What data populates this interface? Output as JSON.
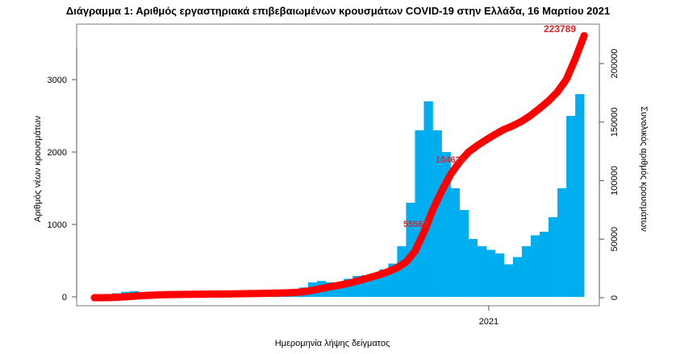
{
  "chart_data": {
    "type": "bar",
    "title": "Διάγραμμα 1: Αριθμός εργαστηριακά επιβεβαιωμένων κρουσμάτων COVID-19 στην Ελλάδα, 16 Μαρτίου 2021",
    "xlabel": "Ημερομηνία λήψης δείγματος",
    "ylabel": "Αριθμός νέων κρουσμάτων",
    "ylabel_right": "Συνολικός αριθμός κρουσμάτων",
    "x_tick_labels": [
      "2021"
    ],
    "y_ticks": [
      0,
      1000,
      2000,
      3000
    ],
    "y_ticks_right": [
      0,
      50000,
      100000,
      150000,
      200000
    ],
    "y_tick_labels_right": [
      "0",
      "50000",
      "100000",
      "150000",
      "200000"
    ],
    "ylim": [
      0,
      3500
    ],
    "ylim_right": [
      0,
      230000
    ],
    "x_start": "2020-02-26",
    "x_end": "2021-03-15",
    "bar_period_days": 7,
    "values": [
      3,
      20,
      50,
      70,
      80,
      60,
      50,
      30,
      20,
      15,
      12,
      10,
      10,
      10,
      12,
      15,
      20,
      15,
      20,
      25,
      25,
      35,
      60,
      130,
      200,
      220,
      200,
      200,
      250,
      290,
      300,
      320,
      380,
      460,
      700,
      1300,
      2300,
      2700,
      2300,
      2000,
      1500,
      1200,
      800,
      700,
      650,
      600,
      450,
      550,
      700,
      850,
      900,
      1100,
      1500,
      2500,
      2800
    ],
    "cumulative_series": {
      "type": "line",
      "axis": "right"
    },
    "annotations": [
      {
        "label": "55563",
        "date": "2020-11-08"
      },
      {
        "label": "104625",
        "date": "2020-11-25"
      },
      {
        "label": "223789",
        "date": "2021-03-15"
      }
    ],
    "grid": false,
    "colors": {
      "bars": "#00AEEF",
      "cumulative": "#FF0000",
      "annotation": "#E8202A"
    }
  }
}
